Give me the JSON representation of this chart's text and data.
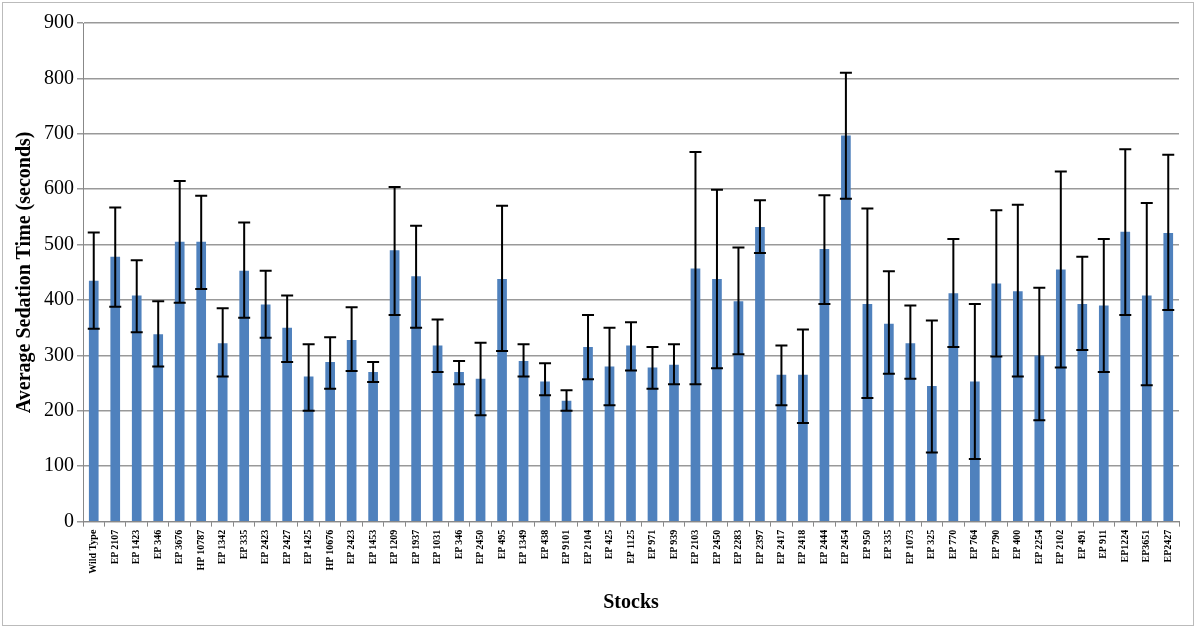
{
  "chart_data": {
    "type": "bar",
    "xlabel": "Stocks",
    "ylabel": "Average Sedation Time (seconds)",
    "categories": [
      "Wild Type",
      "EP 2107",
      "EP 1423",
      "EP 346",
      "EP 3676",
      "HP 10787",
      "EP 1342",
      "EP 335",
      "EP 2423",
      "EP 2427",
      "EP 1425",
      "HP 10676",
      "EP 2423",
      "EP 1453",
      "EP 1209",
      "EP 1937",
      "EP 1031",
      "EP 346",
      "EP 2450",
      "EP 495",
      "EP 1349",
      "EP 438",
      "EP 9101",
      "EP 2104",
      "EP 425",
      "EP 1125",
      "EP 971",
      "EP 939",
      "EP 2103",
      "EP 2450",
      "EP 2283",
      "EP 2397",
      "EP 2417",
      "EP 2418",
      "EP 2444",
      "EP 2454",
      "EP 950",
      "EP 335",
      "EP 1073",
      "EP 325",
      "EP 770",
      "EP 764",
      "EP 790",
      "EP 400",
      "EP 2254",
      "EP 2102",
      "EP 491",
      "EP 911",
      "EP1224",
      "EP3651",
      "EP2427"
    ],
    "values": [
      435,
      478,
      408,
      338,
      505,
      505,
      322,
      453,
      392,
      350,
      262,
      288,
      328,
      270,
      490,
      443,
      318,
      270,
      258,
      438,
      290,
      253,
      218,
      315,
      280,
      318,
      278,
      283,
      457,
      438,
      398,
      532,
      265,
      265,
      492,
      697,
      393,
      357,
      322,
      245,
      412,
      253,
      430,
      416,
      300,
      455,
      393,
      390,
      523,
      408,
      521
    ],
    "errors": [
      [
        348,
        522
      ],
      [
        388,
        567
      ],
      [
        342,
        472
      ],
      [
        280,
        398
      ],
      [
        395,
        615
      ],
      [
        420,
        588
      ],
      [
        262,
        385
      ],
      [
        368,
        540
      ],
      [
        332,
        453
      ],
      [
        288,
        408
      ],
      [
        200,
        320
      ],
      [
        240,
        333
      ],
      [
        272,
        387
      ],
      [
        252,
        288
      ],
      [
        373,
        604
      ],
      [
        350,
        534
      ],
      [
        270,
        365
      ],
      [
        248,
        290
      ],
      [
        192,
        323
      ],
      [
        308,
        570
      ],
      [
        262,
        320
      ],
      [
        228,
        286
      ],
      [
        200,
        237
      ],
      [
        257,
        373
      ],
      [
        210,
        350
      ],
      [
        273,
        360
      ],
      [
        240,
        315
      ],
      [
        248,
        320
      ],
      [
        248,
        667
      ],
      [
        277,
        599
      ],
      [
        302,
        495
      ],
      [
        485,
        580
      ],
      [
        210,
        318
      ],
      [
        178,
        347
      ],
      [
        393,
        589
      ],
      [
        583,
        810
      ],
      [
        223,
        565
      ],
      [
        267,
        452
      ],
      [
        258,
        390
      ],
      [
        125,
        363
      ],
      [
        315,
        510
      ],
      [
        113,
        393
      ],
      [
        298,
        562
      ],
      [
        262,
        572
      ],
      [
        183,
        422
      ],
      [
        278,
        632
      ],
      [
        310,
        478
      ],
      [
        270,
        510
      ],
      [
        373,
        672
      ],
      [
        246,
        575
      ],
      [
        382,
        662
      ]
    ],
    "color": "#4f81bd",
    "ylim": [
      0,
      900
    ],
    "yticks": [
      0,
      100,
      200,
      300,
      400,
      500,
      600,
      700,
      800,
      900
    ],
    "grid": "y",
    "legend": false
  }
}
